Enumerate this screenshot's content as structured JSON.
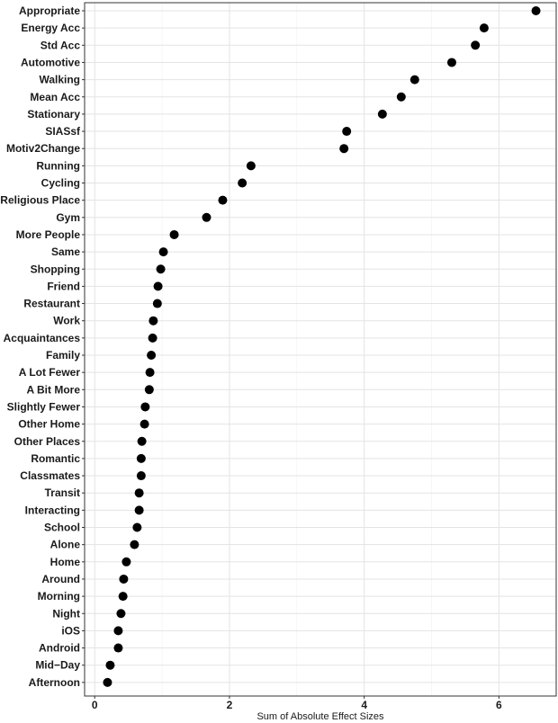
{
  "chart_data": {
    "type": "scatter",
    "xlabel": "Sum of Absolute Effect Sizes",
    "xlim": [
      -0.15,
      6.85
    ],
    "x_ticks": [
      0,
      2,
      4,
      6
    ],
    "grid": true,
    "categories": [
      "Appropriate",
      "Energy Acc",
      "Std Acc",
      "Automotive",
      "Walking",
      "Mean Acc",
      "Stationary",
      "SIASsf",
      "Motiv2Change",
      "Running",
      "Cycling",
      "Religious Place",
      "Gym",
      "More People",
      "Same",
      "Shopping",
      "Friend",
      "Restaurant",
      "Work",
      "Acquaintances",
      "Family",
      "A Lot Fewer",
      "A Bit More",
      "Slightly Fewer",
      "Other Home",
      "Other Places",
      "Romantic",
      "Classmates",
      "Transit",
      "Interacting",
      "School",
      "Alone",
      "Home",
      "Around",
      "Morning",
      "Night",
      "iOS",
      "Android",
      "Mid−Day",
      "Afternoon"
    ],
    "values": [
      6.55,
      5.78,
      5.65,
      5.3,
      4.75,
      4.55,
      4.27,
      3.74,
      3.7,
      2.32,
      2.19,
      1.9,
      1.66,
      1.18,
      1.02,
      0.98,
      0.94,
      0.93,
      0.87,
      0.86,
      0.84,
      0.82,
      0.81,
      0.75,
      0.74,
      0.7,
      0.69,
      0.69,
      0.66,
      0.66,
      0.63,
      0.59,
      0.47,
      0.43,
      0.42,
      0.39,
      0.35,
      0.35,
      0.23,
      0.19
    ],
    "point_color": "#000000"
  }
}
